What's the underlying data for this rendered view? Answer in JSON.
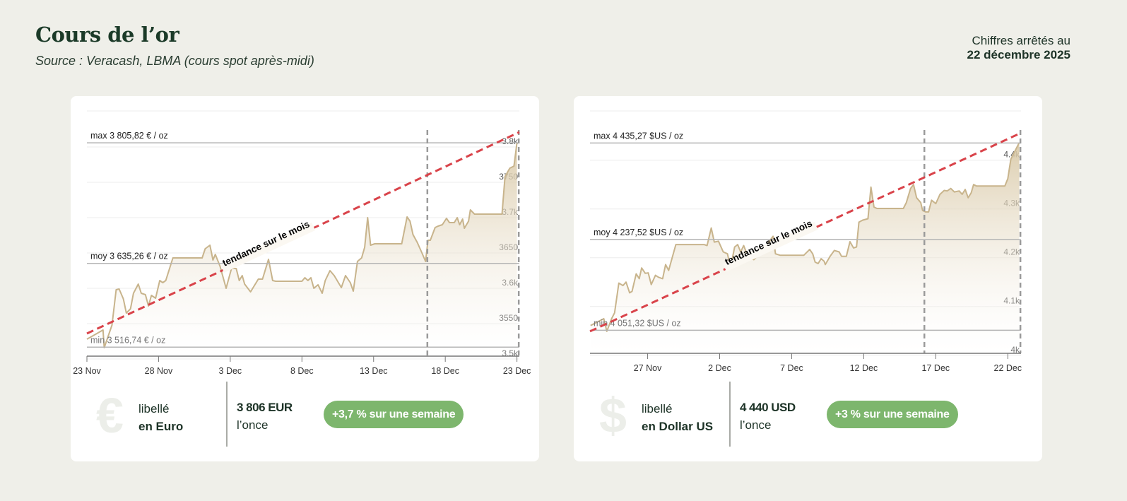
{
  "header": {
    "title": "Cours de l’or",
    "subtitle": "Source : Veracash, LBMA (cours spot après-midi)",
    "asof_label": "Chiffres arrêtés au",
    "asof_date": "22 décembre 2025"
  },
  "colors": {
    "line": "#c8b48c",
    "fill_top": "#d8c7a4",
    "trend": "#d9434a",
    "badge": "#7db66d",
    "title": "#1b3a28"
  },
  "panels": [
    {
      "label_line1": "libellé",
      "label_line2": "en Euro",
      "currency_icon": "euro-icon",
      "currency_glyph": "€",
      "price": "3 806 EUR",
      "price_unit": "l’once",
      "badge": "+3,7 % sur une semaine"
    },
    {
      "label_line1": "libellé",
      "label_line2": "en Dollar US",
      "currency_icon": "dollar-icon",
      "currency_glyph": "$",
      "price": "4 440 USD",
      "price_unit": "l’once",
      "badge": "+3 % sur une semaine"
    }
  ],
  "chart_data": [
    {
      "type": "area",
      "xlim": [
        "2025-11-23T00:00",
        "2025-12-23T04:00"
      ],
      "ylim": [
        3504,
        3851
      ],
      "grid": true,
      "yticks": [
        {
          "v": 3800,
          "label": "3.8k"
        },
        {
          "v": 3750,
          "label": "3750"
        },
        {
          "v": 3700,
          "label": "3.7k"
        },
        {
          "v": 3650,
          "label": "3650"
        },
        {
          "v": 3600,
          "label": "3.6k"
        },
        {
          "v": 3550,
          "label": "3550"
        },
        {
          "v": 3500,
          "label": "3.5k"
        }
      ],
      "xticks": [
        {
          "x": "2025-11-23T00:00",
          "label": "23 Nov"
        },
        {
          "x": "2025-11-28T00:00",
          "label": "28 Nov"
        },
        {
          "x": "2025-12-03T00:00",
          "label": "3 Dec"
        },
        {
          "x": "2025-12-08T00:00",
          "label": "8 Dec"
        },
        {
          "x": "2025-12-13T00:00",
          "label": "13 Dec"
        },
        {
          "x": "2025-12-18T00:00",
          "label": "18 Dec"
        },
        {
          "x": "2025-12-23T00:00",
          "label": "23 Dec"
        }
      ],
      "reference_lines": [
        {
          "v": 3805.82,
          "label": "max 3 805,82 € / oz"
        },
        {
          "v": 3635.26,
          "label": "moy 3 635,26 € / oz"
        },
        {
          "v": 3516.74,
          "label": "min 3 516,74 € / oz"
        }
      ],
      "markers": [
        "2025-12-16T18:00",
        "2025-12-23T03:00"
      ],
      "trend": {
        "label": "tendance sur le mois",
        "start": [
          "2025-11-23T00:00",
          3536
        ],
        "end": [
          "2025-12-23T04:00",
          3821
        ]
      },
      "points": [
        [
          "2025-11-23T00:00",
          3528
        ],
        [
          "2025-11-24T03:00",
          3541
        ],
        [
          "2025-11-24T05:00",
          3516
        ],
        [
          "2025-11-24T18:00",
          3548
        ],
        [
          "2025-11-25T01:00",
          3598
        ],
        [
          "2025-11-25T06:00",
          3599
        ],
        [
          "2025-11-25T13:00",
          3585
        ],
        [
          "2025-11-25T18:00",
          3565
        ],
        [
          "2025-11-26T01:00",
          3571
        ],
        [
          "2025-11-26T06:00",
          3593
        ],
        [
          "2025-11-26T14:00",
          3606
        ],
        [
          "2025-11-26T19:00",
          3593
        ],
        [
          "2025-11-27T02:00",
          3591
        ],
        [
          "2025-11-27T07:00",
          3575
        ],
        [
          "2025-11-27T12:00",
          3590
        ],
        [
          "2025-11-27T19:00",
          3586
        ],
        [
          "2025-11-28T02:00",
          3611
        ],
        [
          "2025-11-28T07:00",
          3608
        ],
        [
          "2025-11-28T12:00",
          3611
        ],
        [
          "2025-11-29T00:00",
          3643
        ],
        [
          "2025-12-01T01:00",
          3643
        ],
        [
          "2025-12-01T06:00",
          3656
        ],
        [
          "2025-12-01T14:00",
          3661
        ],
        [
          "2025-12-01T19:00",
          3640
        ],
        [
          "2025-12-01T23:00",
          3648
        ],
        [
          "2025-12-02T07:00",
          3631
        ],
        [
          "2025-12-02T17:00",
          3600
        ],
        [
          "2025-12-03T02:00",
          3628
        ],
        [
          "2025-12-03T10:00",
          3628
        ],
        [
          "2025-12-03T15:00",
          3611
        ],
        [
          "2025-12-03T20:00",
          3618
        ],
        [
          "2025-12-04T00:00",
          3606
        ],
        [
          "2025-12-04T10:00",
          3595
        ],
        [
          "2025-12-04T23:00",
          3613
        ],
        [
          "2025-12-05T06:00",
          3613
        ],
        [
          "2025-12-05T16:00",
          3641
        ],
        [
          "2025-12-05T23:00",
          3611
        ],
        [
          "2025-12-06T04:00",
          3610
        ],
        [
          "2025-12-08T00:00",
          3610
        ],
        [
          "2025-12-08T05:00",
          3615
        ],
        [
          "2025-12-08T10:00",
          3611
        ],
        [
          "2025-12-08T15:00",
          3615
        ],
        [
          "2025-12-08T20:00",
          3600
        ],
        [
          "2025-12-09T03:00",
          3605
        ],
        [
          "2025-12-09T10:00",
          3593
        ],
        [
          "2025-12-09T15:00",
          3611
        ],
        [
          "2025-12-09T23:00",
          3625
        ],
        [
          "2025-12-10T06:00",
          3618
        ],
        [
          "2025-12-10T18:00",
          3601
        ],
        [
          "2025-12-11T01:00",
          3618
        ],
        [
          "2025-12-11T09:00",
          3608
        ],
        [
          "2025-12-11T14:00",
          3596
        ],
        [
          "2025-12-11T21:00",
          3638
        ],
        [
          "2025-12-12T04:00",
          3643
        ],
        [
          "2025-12-12T09:00",
          3658
        ],
        [
          "2025-12-12T14:00",
          3700
        ],
        [
          "2025-12-12T19:00",
          3661
        ],
        [
          "2025-12-13T02:00",
          3663
        ],
        [
          "2025-12-14T23:00",
          3663
        ],
        [
          "2025-12-15T08:00",
          3701
        ],
        [
          "2025-12-15T13:00",
          3695
        ],
        [
          "2025-12-15T18:00",
          3676
        ],
        [
          "2025-12-16T01:00",
          3665
        ],
        [
          "2025-12-16T09:00",
          3650
        ],
        [
          "2025-12-16T15:00",
          3638
        ],
        [
          "2025-12-16T19:00",
          3668
        ],
        [
          "2025-12-16T23:00",
          3668
        ],
        [
          "2025-12-17T07:00",
          3686
        ],
        [
          "2025-12-17T12:00",
          3688
        ],
        [
          "2025-12-17T19:00",
          3690
        ],
        [
          "2025-12-18T02:00",
          3699
        ],
        [
          "2025-12-18T07:00",
          3693
        ],
        [
          "2025-12-18T15:00",
          3693
        ],
        [
          "2025-12-18T20:00",
          3700
        ],
        [
          "2025-12-19T00:00",
          3690
        ],
        [
          "2025-12-19T05:00",
          3698
        ],
        [
          "2025-12-19T08:00",
          3685
        ],
        [
          "2025-12-19T15:00",
          3695
        ],
        [
          "2025-12-19T18:00",
          3711
        ],
        [
          "2025-12-20T01:00",
          3705
        ],
        [
          "2025-12-21T23:00",
          3705
        ],
        [
          "2025-12-22T04:00",
          3758
        ],
        [
          "2025-12-22T12:00",
          3770
        ],
        [
          "2025-12-22T19:00",
          3773
        ],
        [
          "2025-12-23T00:00",
          3806
        ]
      ]
    },
    {
      "type": "area",
      "xlim": [
        "2025-11-23T00:00",
        "2025-12-22T22:00"
      ],
      "ylim": [
        4004,
        4501
      ],
      "grid": true,
      "yticks": [
        {
          "v": 4400,
          "label": "4.4k"
        },
        {
          "v": 4300,
          "label": "4.3k"
        },
        {
          "v": 4200,
          "label": "4.2k"
        },
        {
          "v": 4100,
          "label": "4.1k"
        },
        {
          "v": 4000,
          "label": "4k"
        }
      ],
      "xticks": [
        {
          "x": "2025-11-27T00:00",
          "label": "27 Nov"
        },
        {
          "x": "2025-12-02T00:00",
          "label": "2 Dec"
        },
        {
          "x": "2025-12-07T00:00",
          "label": "7 Dec"
        },
        {
          "x": "2025-12-12T00:00",
          "label": "12 Dec"
        },
        {
          "x": "2025-12-17T00:00",
          "label": "17 Dec"
        },
        {
          "x": "2025-12-22T00:00",
          "label": "22 Dec"
        }
      ],
      "reference_lines": [
        {
          "v": 4435.27,
          "label": "max 4 435,27 $US / oz"
        },
        {
          "v": 4237.52,
          "label": "moy 4 237,52 $US / oz"
        },
        {
          "v": 4051.32,
          "label": "min 4 051,32 $US / oz"
        }
      ],
      "markers": [
        "2025-12-16T05:00",
        "2025-12-22T21:00"
      ],
      "trend": {
        "label": "tendance sur le mois",
        "start": [
          "2025-11-23T00:00",
          4049
        ],
        "end": [
          "2025-12-22T22:00",
          4456
        ]
      },
      "points": [
        [
          "2025-11-23T01:00",
          4061
        ],
        [
          "2025-11-23T23:00",
          4075
        ],
        [
          "2025-11-24T04:00",
          4049
        ],
        [
          "2025-11-24T12:00",
          4075
        ],
        [
          "2025-11-24T17:00",
          4087
        ],
        [
          "2025-11-25T00:00",
          4148
        ],
        [
          "2025-11-25T07:00",
          4143
        ],
        [
          "2025-11-25T12:00",
          4150
        ],
        [
          "2025-11-25T18:00",
          4128
        ],
        [
          "2025-11-25T22:00",
          4131
        ],
        [
          "2025-11-26T05:00",
          4167
        ],
        [
          "2025-11-26T10:00",
          4157
        ],
        [
          "2025-11-26T14:00",
          4179
        ],
        [
          "2025-11-26T20:00",
          4168
        ],
        [
          "2025-11-27T01:00",
          4169
        ],
        [
          "2025-11-27T06:00",
          4145
        ],
        [
          "2025-11-27T13:00",
          4164
        ],
        [
          "2025-11-27T18:00",
          4160
        ],
        [
          "2025-11-28T01:00",
          4157
        ],
        [
          "2025-11-28T06:00",
          4186
        ],
        [
          "2025-11-28T11:00",
          4174
        ],
        [
          "2025-11-28T23:00",
          4227
        ],
        [
          "2025-11-30T22:00",
          4227
        ],
        [
          "2025-12-01T03:00",
          4225
        ],
        [
          "2025-12-01T10:00",
          4261
        ],
        [
          "2025-12-01T15:00",
          4232
        ],
        [
          "2025-12-01T22:00",
          4234
        ],
        [
          "2025-12-02T06:00",
          4212
        ],
        [
          "2025-12-02T13:00",
          4208
        ],
        [
          "2025-12-02T18:00",
          4179
        ],
        [
          "2025-12-03T01:00",
          4222
        ],
        [
          "2025-12-03T06:00",
          4227
        ],
        [
          "2025-12-03T11:00",
          4212
        ],
        [
          "2025-12-03T16:00",
          4225
        ],
        [
          "2025-12-03T23:00",
          4203
        ],
        [
          "2025-12-04T09:00",
          4196
        ],
        [
          "2025-12-04T18:00",
          4208
        ],
        [
          "2025-12-05T04:00",
          4222
        ],
        [
          "2025-12-05T17:00",
          4244
        ],
        [
          "2025-12-05T21:00",
          4208
        ],
        [
          "2025-12-06T05:00",
          4205
        ],
        [
          "2025-12-07T20:00",
          4205
        ],
        [
          "2025-12-08T06:00",
          4217
        ],
        [
          "2025-12-08T11:00",
          4208
        ],
        [
          "2025-12-08T15:00",
          4191
        ],
        [
          "2025-12-08T20:00",
          4188
        ],
        [
          "2025-12-09T01:00",
          4198
        ],
        [
          "2025-12-09T06:00",
          4193
        ],
        [
          "2025-12-09T08:00",
          4186
        ],
        [
          "2025-12-09T16:00",
          4203
        ],
        [
          "2025-12-09T23:00",
          4215
        ],
        [
          "2025-12-10T07:00",
          4212
        ],
        [
          "2025-12-10T11:00",
          4203
        ],
        [
          "2025-12-10T19:00",
          4203
        ],
        [
          "2025-12-11T01:00",
          4233
        ],
        [
          "2025-12-11T07:00",
          4220
        ],
        [
          "2025-12-11T12:00",
          4222
        ],
        [
          "2025-12-11T16:00",
          4273
        ],
        [
          "2025-12-11T22:00",
          4277
        ],
        [
          "2025-12-12T07:00",
          4280
        ],
        [
          "2025-12-12T12:00",
          4345
        ],
        [
          "2025-12-12T17:00",
          4304
        ],
        [
          "2025-12-12T22:00",
          4301
        ],
        [
          "2025-12-14T18:00",
          4301
        ],
        [
          "2025-12-14T23:00",
          4313
        ],
        [
          "2025-12-15T06:00",
          4342
        ],
        [
          "2025-12-15T11:00",
          4350
        ],
        [
          "2025-12-15T16:00",
          4323
        ],
        [
          "2025-12-15T23:00",
          4313
        ],
        [
          "2025-12-16T02:00",
          4297
        ],
        [
          "2025-12-16T07:00",
          4294
        ],
        [
          "2025-12-16T12:00",
          4294
        ],
        [
          "2025-12-16T17:00",
          4318
        ],
        [
          "2025-12-17T00:00",
          4311
        ],
        [
          "2025-12-17T07:00",
          4330
        ],
        [
          "2025-12-17T14:00",
          4338
        ],
        [
          "2025-12-17T19:00",
          4337
        ],
        [
          "2025-12-18T01:00",
          4342
        ],
        [
          "2025-12-18T07:00",
          4335
        ],
        [
          "2025-12-18T15:00",
          4337
        ],
        [
          "2025-12-18T20:00",
          4330
        ],
        [
          "2025-12-19T01:00",
          4340
        ],
        [
          "2025-12-19T06:00",
          4323
        ],
        [
          "2025-12-19T11:00",
          4333
        ],
        [
          "2025-12-19T15:00",
          4350
        ],
        [
          "2025-12-19T20:00",
          4347
        ],
        [
          "2025-12-21T19:00",
          4347
        ],
        [
          "2025-12-22T00:00",
          4362
        ],
        [
          "2025-12-22T05:00",
          4402
        ],
        [
          "2025-12-22T12:00",
          4419
        ],
        [
          "2025-12-22T19:00",
          4436
        ]
      ]
    }
  ]
}
